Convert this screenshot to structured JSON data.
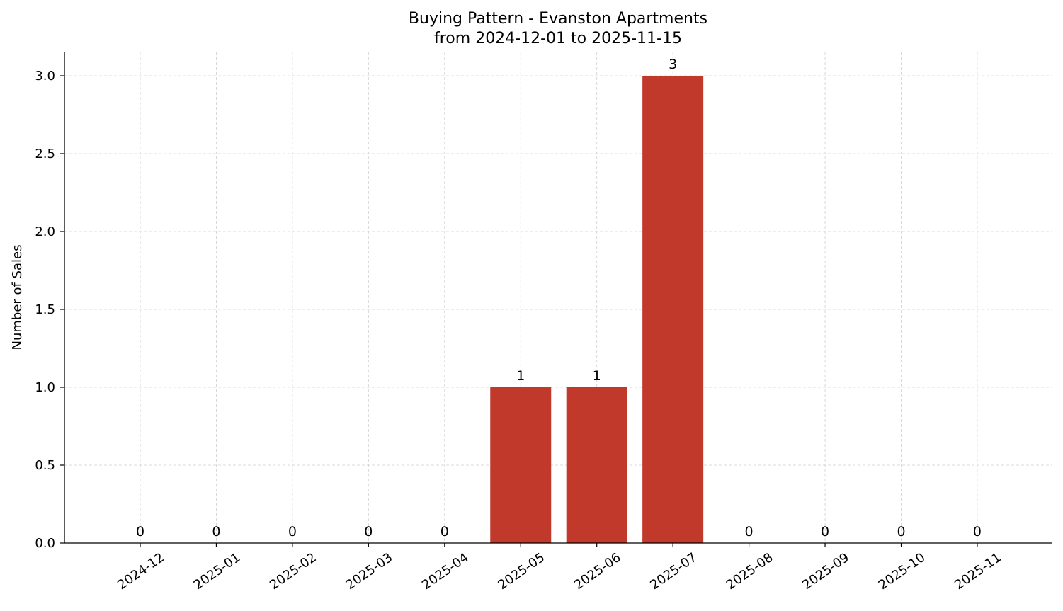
{
  "chart_data": {
    "type": "bar",
    "title": "Buying Pattern - Evanston Apartments",
    "subtitle": "from 2024-12-01 to 2025-11-15",
    "xlabel": "",
    "ylabel": "Number of Sales",
    "categories": [
      "2024-12",
      "2025-01",
      "2025-02",
      "2025-03",
      "2025-04",
      "2025-05",
      "2025-06",
      "2025-07",
      "2025-08",
      "2025-09",
      "2025-10",
      "2025-11"
    ],
    "values": [
      0,
      0,
      0,
      0,
      0,
      1,
      1,
      3,
      0,
      0,
      0,
      0
    ],
    "data_labels": [
      "0",
      "0",
      "0",
      "0",
      "0",
      "1",
      "1",
      "3",
      "0",
      "0",
      "0",
      "0"
    ],
    "ylim": [
      0,
      3.15
    ],
    "yticks": [
      0.0,
      0.5,
      1.0,
      1.5,
      2.0,
      2.5,
      3.0
    ],
    "ytick_labels": [
      "0.0",
      "0.5",
      "1.0",
      "1.5",
      "2.0",
      "2.5",
      "3.0"
    ],
    "grid": true,
    "colors": {
      "bar": "#c0392b"
    }
  }
}
